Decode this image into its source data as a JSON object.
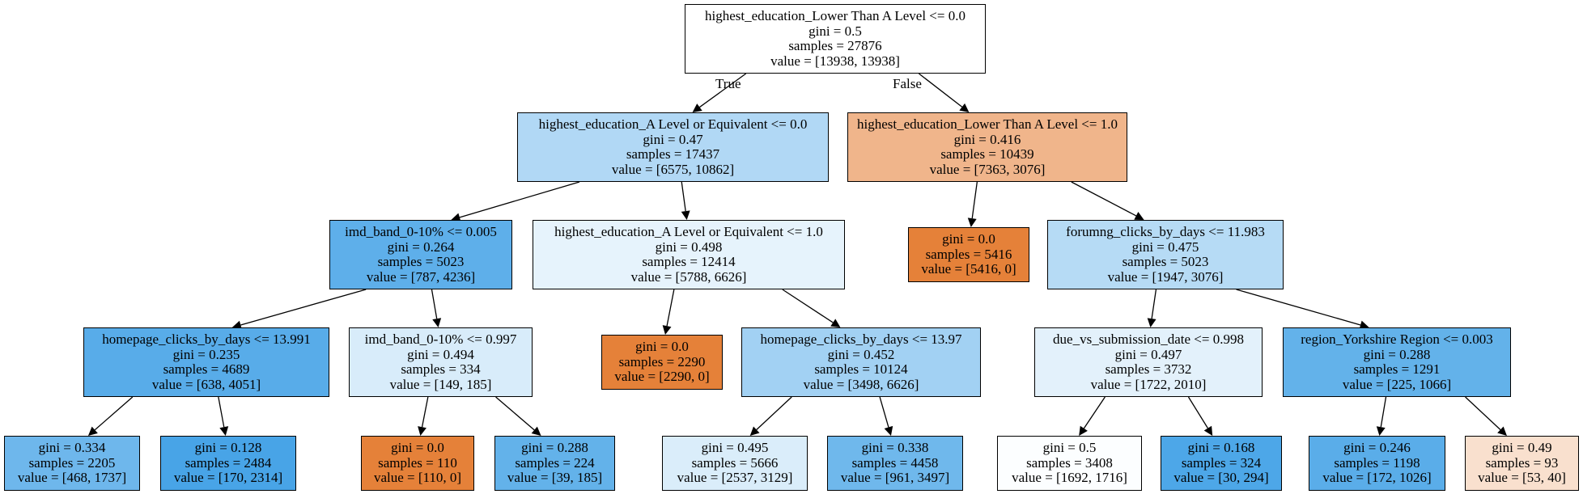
{
  "edge_labels": {
    "true_label": "True",
    "false_label": "False"
  },
  "nodes": {
    "n0": {
      "lines": [
        "highest_education_Lower Than A Level <= 0.0",
        "gini = 0.5",
        "samples = 27876",
        "value = [13938, 13938]"
      ],
      "fill": "#ffffff"
    },
    "n1": {
      "lines": [
        "highest_education_A Level or Equivalent <= 0.0",
        "gini = 0.47",
        "samples = 17437",
        "value = [6575, 10862]"
      ],
      "fill": "#b1d8f5"
    },
    "n2": {
      "lines": [
        "highest_education_Lower Than A Level <= 1.0",
        "gini = 0.416",
        "samples = 10439",
        "value = [7363, 3076]"
      ],
      "fill": "#f0b58b"
    },
    "n3": {
      "lines": [
        "imd_band_0-10% <= 0.005",
        "gini = 0.264",
        "samples = 5023",
        "value = [787, 4236]"
      ],
      "fill": "#5eafea"
    },
    "n4": {
      "lines": [
        "highest_education_A Level or Equivalent <= 1.0",
        "gini = 0.498",
        "samples = 12414",
        "value = [5788, 6626]"
      ],
      "fill": "#e6f3fc"
    },
    "n5": {
      "lines": [
        "gini = 0.0",
        "samples = 5416",
        "value = [5416, 0]"
      ],
      "fill": "#e58139"
    },
    "n6": {
      "lines": [
        "forumng_clicks_by_days <= 11.983",
        "gini = 0.475",
        "samples = 5023",
        "value = [1947, 3076]"
      ],
      "fill": "#b6dbf5"
    },
    "n7": {
      "lines": [
        "homepage_clicks_by_days <= 13.991",
        "gini = 0.235",
        "samples = 4689",
        "value = [638, 4051]"
      ],
      "fill": "#58ace9"
    },
    "n8": {
      "lines": [
        "imd_band_0-10% <= 0.997",
        "gini = 0.494",
        "samples = 334",
        "value = [149, 185]"
      ],
      "fill": "#d8ecfa"
    },
    "n9": {
      "lines": [
        "gini = 0.0",
        "samples = 2290",
        "value = [2290, 0]"
      ],
      "fill": "#e58139"
    },
    "n10": {
      "lines": [
        "homepage_clicks_by_days <= 13.97",
        "gini = 0.452",
        "samples = 10124",
        "value = [3498, 6626]"
      ],
      "fill": "#a2d1f3"
    },
    "n11": {
      "lines": [
        "due_vs_submission_date <= 0.998",
        "gini = 0.497",
        "samples = 3732",
        "value = [1722, 2010]"
      ],
      "fill": "#e3f1fb"
    },
    "n12": {
      "lines": [
        "region_Yorkshire Region <= 0.003",
        "gini = 0.288",
        "samples = 1291",
        "value = [225, 1066]"
      ],
      "fill": "#63b2ea"
    },
    "n13": {
      "lines": [
        "gini = 0.334",
        "samples = 2205",
        "value = [468, 1737]"
      ],
      "fill": "#6eb7ec"
    },
    "n14": {
      "lines": [
        "gini = 0.128",
        "samples = 2484",
        "value = [170, 2314]"
      ],
      "fill": "#48a4e7"
    },
    "n15": {
      "lines": [
        "gini = 0.0",
        "samples = 110",
        "value = [110, 0]"
      ],
      "fill": "#e58139"
    },
    "n16": {
      "lines": [
        "gini = 0.288",
        "samples = 224",
        "value = [39, 185]"
      ],
      "fill": "#63b2ea"
    },
    "n17": {
      "lines": [
        "gini = 0.495",
        "samples = 5666",
        "value = [2537, 3129]"
      ],
      "fill": "#daedfa"
    },
    "n18": {
      "lines": [
        "gini = 0.338",
        "samples = 4458",
        "value = [961, 3497]"
      ],
      "fill": "#6fb8ec"
    },
    "n19": {
      "lines": [
        "gini = 0.5",
        "samples = 3408",
        "value = [1692, 1716]"
      ],
      "fill": "#fcfeff"
    },
    "n20": {
      "lines": [
        "gini = 0.168",
        "samples = 324",
        "value = [30, 294]"
      ],
      "fill": "#4da7e8"
    },
    "n21": {
      "lines": [
        "gini = 0.246",
        "samples = 1198",
        "value = [172, 1026]"
      ],
      "fill": "#5aade9"
    },
    "n22": {
      "lines": [
        "gini = 0.49",
        "samples = 93",
        "value = [53, 40]"
      ],
      "fill": "#f9e0ce"
    }
  }
}
